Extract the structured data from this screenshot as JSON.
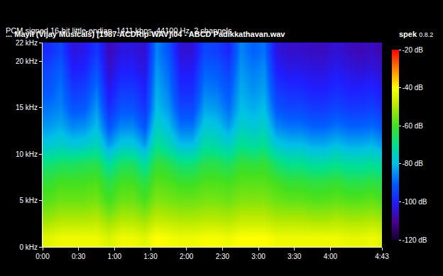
{
  "chart_data": {
    "type": "heatmap",
    "title": "... Mayil (Vijay Musicals) [1987-ACDRip-WAV]\\04 - ABCD Padikkathavan.wav",
    "subtitle": "PCM signed 16-bit little-endian, 1411 kbps, 44100 Hz, 2 channels",
    "annotations": [
      "spek",
      "0.8.2"
    ],
    "x": [
      5,
      15,
      25,
      35,
      45,
      55,
      65,
      75,
      85,
      95,
      105,
      115,
      125,
      135,
      145,
      155,
      165,
      175,
      185,
      195,
      205,
      215,
      225,
      235,
      245,
      255,
      265,
      275,
      285
    ],
    "y": [
      1,
      3,
      5,
      7,
      9,
      11,
      13,
      15,
      17,
      19,
      21
    ],
    "z": [
      [
        -44,
        -42,
        -42,
        -42,
        -42,
        -45,
        -42,
        -42,
        -44,
        -40,
        -41,
        -42,
        -42,
        -41,
        -41,
        -42,
        -40,
        -40,
        -40,
        -42,
        -42,
        -42,
        -42,
        -42,
        -42,
        -43,
        -43,
        -42,
        -44
      ],
      [
        -52,
        -50,
        -50,
        -50,
        -49,
        -53,
        -50,
        -50,
        -52,
        -48,
        -49,
        -50,
        -50,
        -49,
        -49,
        -50,
        -48,
        -48,
        -48,
        -50,
        -50,
        -50,
        -51,
        -51,
        -50,
        -51,
        -51,
        -50,
        -52
      ],
      [
        -58,
        -56,
        -56,
        -56,
        -55,
        -60,
        -56,
        -56,
        -59,
        -54,
        -55,
        -56,
        -56,
        -55,
        -55,
        -56,
        -54,
        -54,
        -54,
        -56,
        -57,
        -57,
        -58,
        -58,
        -57,
        -58,
        -58,
        -57,
        -59
      ],
      [
        -62,
        -60,
        -60,
        -60,
        -59,
        -64,
        -60,
        -60,
        -64,
        -58,
        -59,
        -61,
        -61,
        -59,
        -59,
        -60,
        -58,
        -58,
        -58,
        -60,
        -62,
        -62,
        -63,
        -63,
        -62,
        -64,
        -64,
        -63,
        -65
      ],
      [
        -68,
        -66,
        -66,
        -65,
        -64,
        -72,
        -66,
        -66,
        -72,
        -62,
        -64,
        -68,
        -68,
        -64,
        -64,
        -66,
        -62,
        -63,
        -62,
        -67,
        -70,
        -70,
        -72,
        -72,
        -70,
        -72,
        -72,
        -71,
        -74
      ],
      [
        -78,
        -76,
        -78,
        -77,
        -74,
        -84,
        -78,
        -78,
        -84,
        -70,
        -74,
        -80,
        -80,
        -72,
        -73,
        -76,
        -70,
        -72,
        -70,
        -78,
        -80,
        -80,
        -82,
        -82,
        -80,
        -82,
        -82,
        -81,
        -84
      ],
      [
        -84,
        -82,
        -86,
        -85,
        -80,
        -92,
        -86,
        -86,
        -92,
        -76,
        -80,
        -88,
        -88,
        -78,
        -79,
        -84,
        -76,
        -78,
        -76,
        -86,
        -88,
        -88,
        -90,
        -90,
        -88,
        -90,
        -90,
        -89,
        -92
      ],
      [
        -88,
        -86,
        -92,
        -91,
        -84,
        -98,
        -92,
        -92,
        -97,
        -80,
        -84,
        -94,
        -94,
        -83,
        -84,
        -89,
        -80,
        -82,
        -80,
        -92,
        -94,
        -94,
        -96,
        -96,
        -94,
        -96,
        -96,
        -95,
        -98
      ],
      [
        -92,
        -88,
        -96,
        -95,
        -88,
        -102,
        -96,
        -96,
        -100,
        -82,
        -87,
        -98,
        -98,
        -87,
        -88,
        -92,
        -82,
        -85,
        -83,
        -96,
        -98,
        -98,
        -100,
        -100,
        -98,
        -100,
        -100,
        -99,
        -102
      ],
      [
        -94,
        -90,
        -100,
        -99,
        -92,
        -105,
        -100,
        -100,
        -103,
        -84,
        -89,
        -101,
        -101,
        -90,
        -91,
        -95,
        -84,
        -87,
        -85,
        -100,
        -102,
        -102,
        -103,
        -103,
        -101,
        -103,
        -104,
        -103,
        -105
      ],
      [
        -98,
        -94,
        -103,
        -102,
        -96,
        -107,
        -103,
        -103,
        -105,
        -86,
        -92,
        -104,
        -104,
        -94,
        -95,
        -99,
        -86,
        -90,
        -88,
        -103,
        -105,
        -105,
        -106,
        -106,
        -104,
        -106,
        -107,
        -106,
        -108
      ]
    ],
    "xlim": [
      0,
      283
    ],
    "ylim": [
      0,
      22
    ],
    "xticks": [
      {
        "value": 0,
        "label": "0:00"
      },
      {
        "value": 30,
        "label": "0:30"
      },
      {
        "value": 60,
        "label": "1:00"
      },
      {
        "value": 90,
        "label": "1:30"
      },
      {
        "value": 120,
        "label": "2:00"
      },
      {
        "value": 150,
        "label": "2:30"
      },
      {
        "value": 180,
        "label": "3:00"
      },
      {
        "value": 210,
        "label": "3:30"
      },
      {
        "value": 240,
        "label": "4:00"
      },
      {
        "value": 283,
        "label": "4:43"
      }
    ],
    "yticks": [
      {
        "value": 0,
        "label": "0 kHz"
      },
      {
        "value": 5,
        "label": "5 kHz"
      },
      {
        "value": 10,
        "label": "10 kHz"
      },
      {
        "value": 15,
        "label": "15 kHz"
      },
      {
        "value": 20,
        "label": "20 kHz"
      },
      {
        "value": 22,
        "label": "22 kHz"
      }
    ],
    "zlim": [
      -120,
      -20
    ],
    "zticks": [
      {
        "value": -20,
        "label": "-20 dB"
      },
      {
        "value": -40,
        "label": "-40 dB"
      },
      {
        "value": -60,
        "label": "-60 dB"
      },
      {
        "value": -80,
        "label": "-80 dB"
      },
      {
        "value": -100,
        "label": "-100 dB"
      },
      {
        "value": -120,
        "label": "-120 dB"
      }
    ],
    "grid": false
  }
}
